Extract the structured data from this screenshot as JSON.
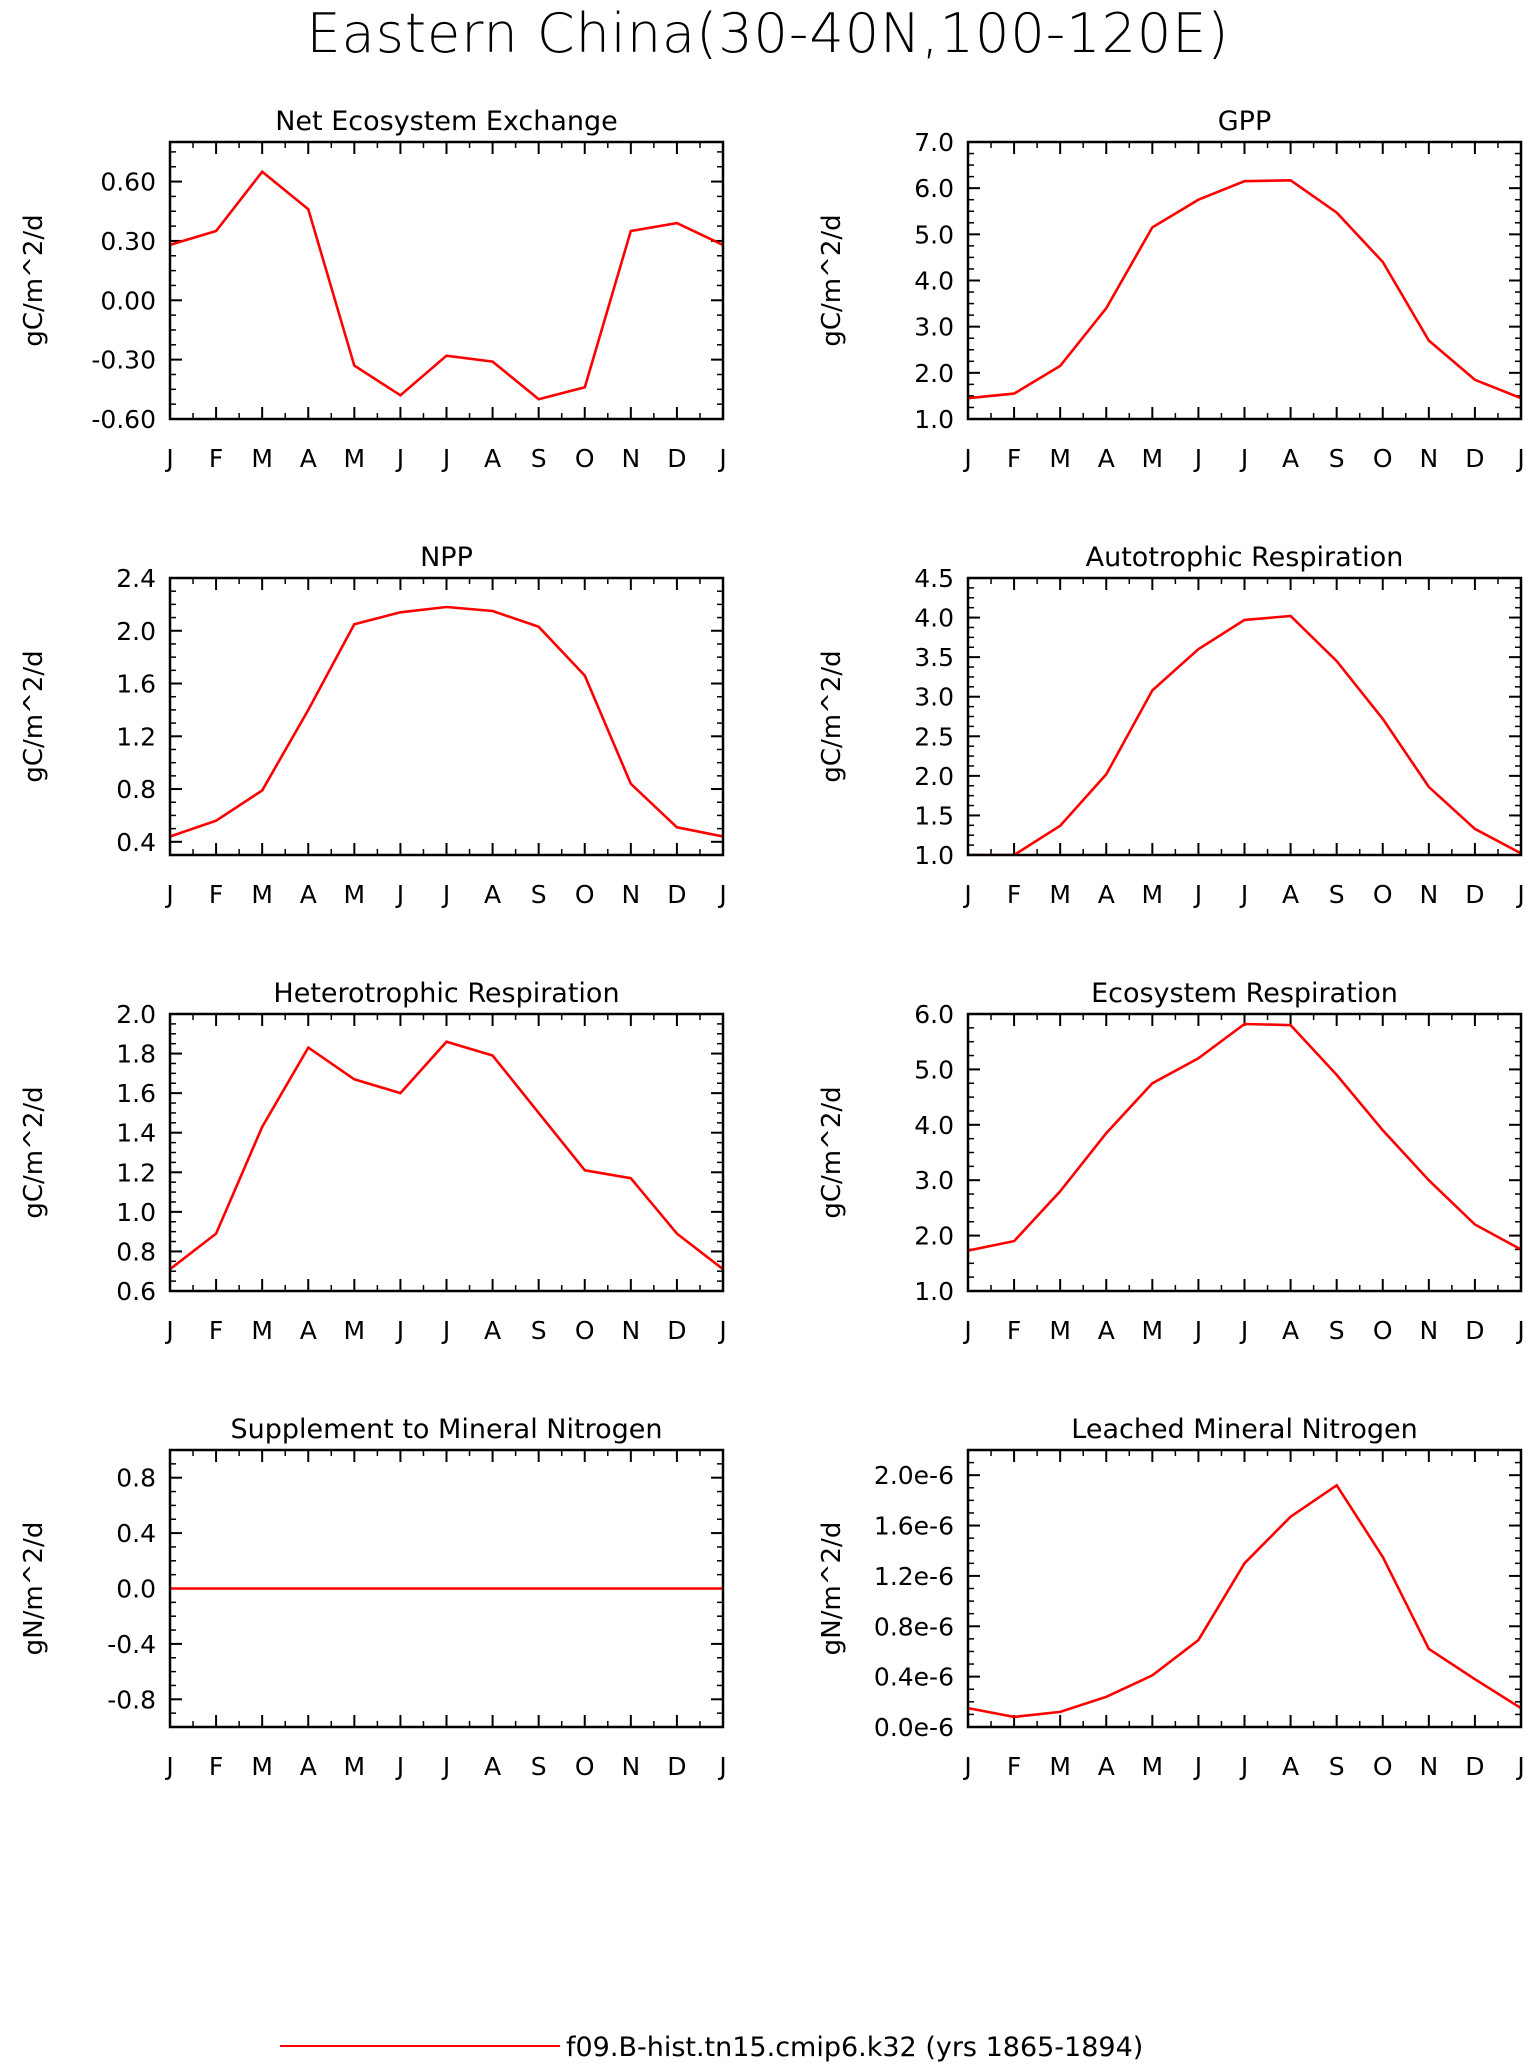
{
  "figure": {
    "title": "Eastern China(30-40N,100-120E)",
    "legend_label": "f09.B-hist.tn15.cmip6.k32 (yrs 1865-1894)",
    "line_color": "#ff0000"
  },
  "chart_data": [
    {
      "type": "line",
      "title": "Net Ecosystem Exchange",
      "ylabel": "gC/m^2/d",
      "categories": [
        "J",
        "F",
        "M",
        "A",
        "M",
        "J",
        "J",
        "A",
        "S",
        "O",
        "N",
        "D",
        "J"
      ],
      "ylim": [
        -0.6,
        0.8
      ],
      "yticks": [
        -0.6,
        -0.3,
        0.0,
        0.3,
        0.6
      ],
      "ytick_labels": [
        "-0.60",
        "-0.30",
        "0.00",
        "0.30",
        "0.60"
      ],
      "values": [
        0.28,
        0.35,
        0.65,
        0.46,
        -0.33,
        -0.48,
        -0.28,
        -0.31,
        -0.5,
        -0.44,
        0.35,
        0.39,
        0.28
      ]
    },
    {
      "type": "line",
      "title": "GPP",
      "ylabel": "gC/m^2/d",
      "categories": [
        "J",
        "F",
        "M",
        "A",
        "M",
        "J",
        "J",
        "A",
        "S",
        "O",
        "N",
        "D",
        "J"
      ],
      "ylim": [
        1.0,
        7.0
      ],
      "yticks": [
        1.0,
        2.0,
        3.0,
        4.0,
        5.0,
        6.0,
        7.0
      ],
      "ytick_labels": [
        "1.0",
        "2.0",
        "3.0",
        "4.0",
        "5.0",
        "6.0",
        "7.0"
      ],
      "values": [
        1.45,
        1.55,
        2.15,
        3.4,
        5.15,
        5.75,
        6.15,
        6.17,
        5.47,
        4.4,
        2.7,
        1.85,
        1.45
      ]
    },
    {
      "type": "line",
      "title": "NPP",
      "ylabel": "gC/m^2/d",
      "categories": [
        "J",
        "F",
        "M",
        "A",
        "M",
        "J",
        "J",
        "A",
        "S",
        "O",
        "N",
        "D",
        "J"
      ],
      "ylim": [
        0.3,
        2.4
      ],
      "yticks": [
        0.4,
        0.8,
        1.2,
        1.6,
        2.0,
        2.4
      ],
      "ytick_labels": [
        "0.4",
        "0.8",
        "1.2",
        "1.6",
        "2.0",
        "2.4"
      ],
      "values": [
        0.44,
        0.56,
        0.79,
        1.4,
        2.05,
        2.14,
        2.18,
        2.15,
        2.03,
        1.66,
        0.84,
        0.51,
        0.44
      ]
    },
    {
      "type": "line",
      "title": "Autotrophic Respiration",
      "ylabel": "gC/m^2/d",
      "categories": [
        "J",
        "F",
        "M",
        "A",
        "M",
        "J",
        "J",
        "A",
        "S",
        "O",
        "N",
        "D",
        "J"
      ],
      "ylim": [
        1.0,
        4.5
      ],
      "yticks": [
        1.0,
        1.5,
        2.0,
        2.5,
        3.0,
        3.5,
        4.0,
        4.5
      ],
      "ytick_labels": [
        "1.0",
        "1.5",
        "2.0",
        "2.5",
        "3.0",
        "3.5",
        "4.0",
        "4.5"
      ],
      "values": [
        1.0,
        1.0,
        1.37,
        2.02,
        3.08,
        3.6,
        3.97,
        4.02,
        3.45,
        2.72,
        1.86,
        1.33,
        1.02
      ]
    },
    {
      "type": "line",
      "title": "Heterotrophic Respiration",
      "ylabel": "gC/m^2/d",
      "categories": [
        "J",
        "F",
        "M",
        "A",
        "M",
        "J",
        "J",
        "A",
        "S",
        "O",
        "N",
        "D",
        "J"
      ],
      "ylim": [
        0.6,
        2.0
      ],
      "yticks": [
        0.6,
        0.8,
        1.0,
        1.2,
        1.4,
        1.6,
        1.8,
        2.0
      ],
      "ytick_labels": [
        "0.6",
        "0.8",
        "1.0",
        "1.2",
        "1.4",
        "1.6",
        "1.8",
        "2.0"
      ],
      "values": [
        0.71,
        0.89,
        1.43,
        1.83,
        1.67,
        1.6,
        1.86,
        1.79,
        1.5,
        1.21,
        1.17,
        0.89,
        0.71
      ]
    },
    {
      "type": "line",
      "title": "Ecosystem Respiration",
      "ylabel": "gC/m^2/d",
      "categories": [
        "J",
        "F",
        "M",
        "A",
        "M",
        "J",
        "J",
        "A",
        "S",
        "O",
        "N",
        "D",
        "J"
      ],
      "ylim": [
        1.0,
        6.0
      ],
      "yticks": [
        1.0,
        2.0,
        3.0,
        4.0,
        5.0,
        6.0
      ],
      "ytick_labels": [
        "1.0",
        "2.0",
        "3.0",
        "4.0",
        "5.0",
        "6.0"
      ],
      "values": [
        1.73,
        1.9,
        2.8,
        3.85,
        4.75,
        5.2,
        5.82,
        5.8,
        4.9,
        3.9,
        3.0,
        2.2,
        1.75
      ]
    },
    {
      "type": "line",
      "title": "Supplement to Mineral Nitrogen",
      "ylabel": "gN/m^2/d",
      "categories": [
        "J",
        "F",
        "M",
        "A",
        "M",
        "J",
        "J",
        "A",
        "S",
        "O",
        "N",
        "D",
        "J"
      ],
      "ylim": [
        -1.0,
        1.0
      ],
      "yticks": [
        -0.8,
        -0.4,
        0.0,
        0.4,
        0.8
      ],
      "ytick_labels": [
        "-0.8",
        "-0.4",
        "0.0",
        "0.4",
        "0.8"
      ],
      "values": [
        0,
        0,
        0,
        0,
        0,
        0,
        0,
        0,
        0,
        0,
        0,
        0,
        0
      ]
    },
    {
      "type": "line",
      "title": "Leached Mineral Nitrogen",
      "ylabel": "gN/m^2/d",
      "categories": [
        "J",
        "F",
        "M",
        "A",
        "M",
        "J",
        "J",
        "A",
        "S",
        "O",
        "N",
        "D",
        "J"
      ],
      "ylim": [
        0.0,
        2.2
      ],
      "yticks": [
        0.0,
        0.4,
        0.8,
        1.2,
        1.6,
        2.0
      ],
      "ytick_labels": [
        "0.0e-6",
        "0.4e-6",
        "0.8e-6",
        "1.2e-6",
        "1.6e-6",
        "2.0e-6"
      ],
      "values": [
        0.15,
        0.08,
        0.12,
        0.24,
        0.41,
        0.69,
        1.3,
        1.67,
        1.92,
        1.35,
        0.62,
        0.38,
        0.15
      ]
    }
  ]
}
